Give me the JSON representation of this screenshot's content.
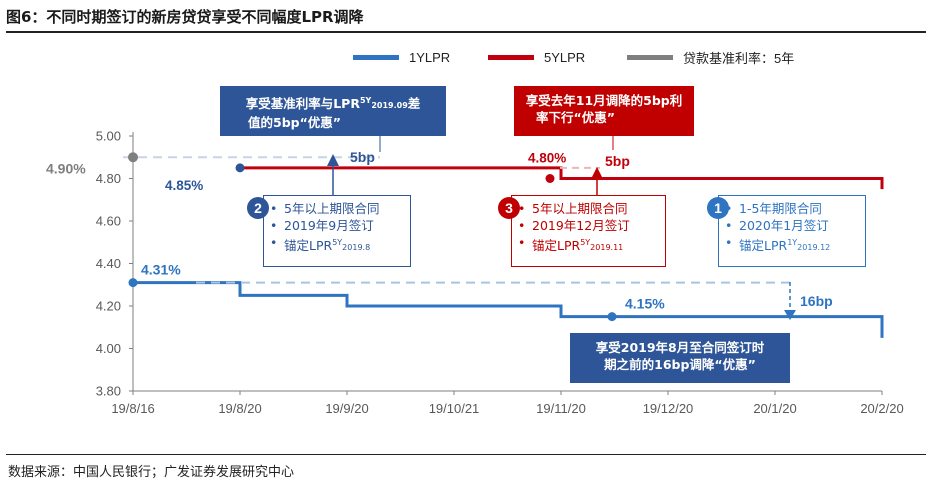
{
  "title": "图6：不同时期签订的新房贷贷享受不同幅度LPR调降",
  "source": "数据来源：中国人民银行；广发证券发展研究中心",
  "colors": {
    "lpr1y": "#2e74c0",
    "lpr5y": "#c0000c",
    "base": "#7f7f7f",
    "box_blue": "#2e5597",
    "box_red": "#c00000"
  },
  "legend": [
    {
      "label": "1YLPR",
      "color": "#2e74c0"
    },
    {
      "label": "5YLPR",
      "color": "#c0000c"
    },
    {
      "label": "贷款基准利率：5年",
      "color": "#7f7f7f"
    }
  ],
  "chart_data": {
    "type": "line",
    "x_ticks": [
      "19/8/16",
      "19/8/20",
      "19/9/20",
      "19/10/21",
      "19/11/20",
      "19/12/20",
      "20/1/20",
      "20/2/20"
    ],
    "y_ticks": [
      "3.80",
      "4.00",
      "4.20",
      "4.40",
      "4.60",
      "4.80",
      "5.00"
    ],
    "ylim": [
      3.8,
      5.0
    ],
    "series": [
      {
        "name": "1YLPR",
        "points": [
          [
            0,
            4.31
          ],
          [
            1,
            4.25
          ],
          [
            2,
            4.2
          ],
          [
            4,
            4.15
          ],
          [
            7,
            4.05
          ]
        ]
      },
      {
        "name": "5YLPR",
        "points": [
          [
            1,
            4.85
          ],
          [
            4,
            4.8
          ],
          [
            7,
            4.75
          ]
        ]
      },
      {
        "name": "贷款基准利率：5年",
        "points": [
          [
            0,
            4.9
          ]
        ]
      }
    ],
    "point_labels": [
      {
        "text": "4.90%",
        "color": "#7f7f7f"
      },
      {
        "text": "4.85%",
        "color": "#2e5597"
      },
      {
        "text": "4.31%",
        "color": "#2e74c0"
      },
      {
        "text": "4.80%",
        "color": "#c0000c"
      },
      {
        "text": "4.15%",
        "color": "#2e74c0"
      }
    ],
    "gap_labels": [
      {
        "text": "5bp",
        "color": "#2e5597"
      },
      {
        "text": "5bp",
        "color": "#c0000c"
      },
      {
        "text": "16bp",
        "color": "#2e74c0"
      }
    ]
  },
  "callouts": {
    "top_blue": {
      "line1_a": "享受基准利率与LPR",
      "sup": "5Y",
      "sub": "2019.09",
      "line1_b": "差",
      "line2": "值的5bp“优惠”"
    },
    "top_red": {
      "line1": "享受去年11月调降的5bp利",
      "line2": "率下行“优惠”"
    },
    "bottom_blue": {
      "line1": "享受2019年8月至合同签订时",
      "line2": "期之前的16bp调降“优惠”"
    },
    "case2": {
      "num": "2",
      "items": [
        "5年以上期限合同",
        "2019年9月签订",
        "锚定LPR"
      ],
      "sup": "5Y",
      "sub": "2019.8"
    },
    "case3": {
      "num": "3",
      "items": [
        "5年以上期限合同",
        "2019年12月签订",
        "锚定LPR"
      ],
      "sup": "5Y",
      "sub": "2019.11"
    },
    "case1": {
      "num": "1",
      "items": [
        "1-5年期限合同",
        "2020年1月签订",
        "锚定LPR"
      ],
      "sup": "1Y",
      "sub": "2019.12"
    }
  }
}
